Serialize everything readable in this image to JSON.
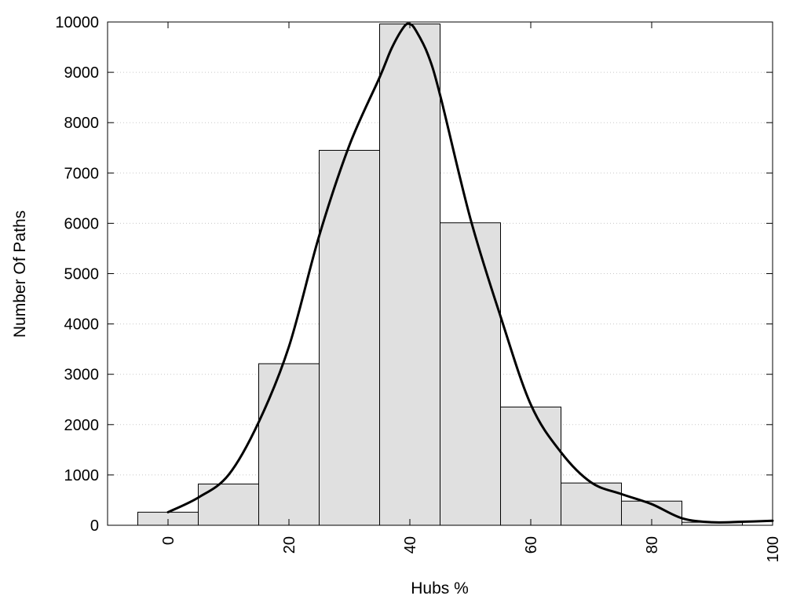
{
  "chart_data": {
    "type": "bar",
    "title": "",
    "xlabel": "Hubs %",
    "ylabel": "Number Of Paths",
    "bin_width": 10,
    "x": [
      0,
      10,
      20,
      30,
      40,
      50,
      60,
      70,
      80,
      90
    ],
    "values": [
      260,
      820,
      3210,
      7450,
      9960,
      6010,
      2350,
      840,
      480,
      60
    ],
    "xlim": [
      -10,
      100
    ],
    "ylim": [
      0,
      10000
    ],
    "xticks": [
      0,
      20,
      40,
      60,
      80,
      100
    ],
    "yticks": [
      0,
      1000,
      2000,
      3000,
      4000,
      5000,
      6000,
      7000,
      8000,
      9000,
      10000
    ],
    "grid": "horizontal dotted",
    "legend": "none",
    "bar_color": "#e0e0e0",
    "line_color": "#000000",
    "density_curve": {
      "x": [
        0,
        5,
        10,
        15,
        20,
        25,
        30,
        35,
        37,
        39,
        40,
        41,
        43,
        45,
        50,
        55,
        60,
        65,
        70,
        75,
        80,
        85,
        90,
        95,
        100
      ],
      "y": [
        260,
        550,
        1000,
        2050,
        3550,
        5750,
        7550,
        8900,
        9480,
        9900,
        9960,
        9830,
        9350,
        8550,
        6100,
        4150,
        2400,
        1450,
        850,
        620,
        420,
        140,
        60,
        70,
        90
      ]
    }
  }
}
